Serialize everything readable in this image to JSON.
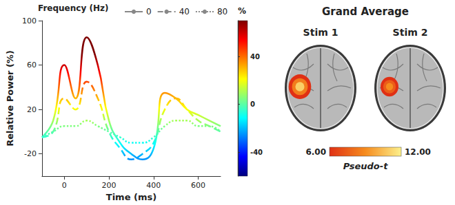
{
  "chart_data": [
    {
      "type": "line",
      "x_label": "Time (ms)",
      "y_label": "Relative Power (%)",
      "z_label": "Frequency (Hz)",
      "x": [
        -100,
        -50,
        0,
        50,
        100,
        150,
        200,
        250,
        300,
        350,
        400,
        450,
        500,
        550,
        600,
        650,
        700
      ],
      "xlim": [
        -100,
        700
      ],
      "xticks": [
        0,
        200,
        400,
        600
      ],
      "ylim": [
        -40,
        100
      ],
      "yticks": [
        -20,
        20,
        60,
        100
      ],
      "legend": "top",
      "series": [
        {
          "name": "0",
          "line_style": "solid",
          "values": [
            -5,
            10,
            60,
            30,
            85,
            60,
            10,
            -10,
            -20,
            -25,
            -15,
            35,
            30,
            20,
            15,
            10,
            5
          ]
        },
        {
          "name": "40",
          "line_style": "dashed",
          "values": [
            -5,
            0,
            30,
            20,
            45,
            30,
            0,
            -15,
            -25,
            -20,
            -10,
            20,
            30,
            20,
            10,
            5,
            0
          ]
        },
        {
          "name": "80",
          "line_style": "dotted",
          "values": [
            -5,
            0,
            5,
            5,
            10,
            5,
            0,
            -5,
            -10,
            -10,
            -5,
            5,
            10,
            10,
            5,
            5,
            0
          ]
        }
      ],
      "colorbar": {
        "title": "%",
        "range": [
          -60,
          70
        ],
        "ticks": [
          -40,
          0,
          40
        ]
      }
    },
    {
      "type": "brain_map",
      "title": "Grand Average",
      "panels": [
        {
          "label": "Stim 1",
          "pseudo_t": 11
        },
        {
          "label": "Stim 2",
          "pseudo_t": 9
        }
      ],
      "colorbar": {
        "title": "Pseudo-t",
        "range": [
          6,
          12
        ],
        "ticks": [
          {
            "value": 6,
            "label": "6.00"
          },
          {
            "value": 12,
            "label": "12.00"
          }
        ]
      }
    }
  ]
}
